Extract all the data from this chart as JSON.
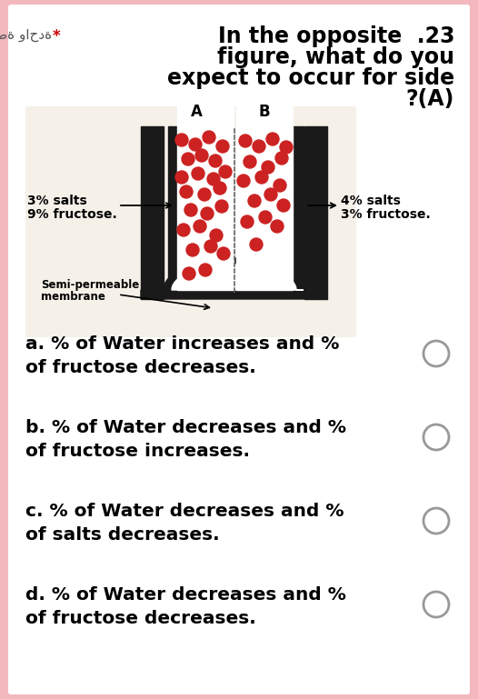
{
  "bg_color": "#ffffff",
  "outer_bg": "#f2b8be",
  "title_line1": "In the opposite  .23",
  "title_line2": "figure, what do you",
  "title_line3": "expect to occur for side",
  "title_line4": "?(A)",
  "arabic_text": "نقطة واحدة",
  "star_text": "*",
  "left_label_line1": "3% salts",
  "left_label_line2": "9% fructose.",
  "right_label_line1": "4% salts",
  "right_label_line2": "3% fructose.",
  "membrane_label_line1": "Semi-permeable",
  "membrane_label_line2": "membrane",
  "side_A": "A",
  "side_B": "B",
  "options": [
    "a. % of Water increases and %\nof fructose decreases.",
    "b. % of Water decreases and %\nof fructose increases.",
    "c. % of Water decreases and %\nof salts decreases.",
    "d. % of Water decreases and %\nof fructose decreases."
  ],
  "title_fontsize": 17,
  "option_fontsize": 14.5,
  "arabic_fontsize": 11,
  "label_fontsize": 10,
  "membrane_fontsize": 8.5,
  "side_label_fontsize": 12
}
